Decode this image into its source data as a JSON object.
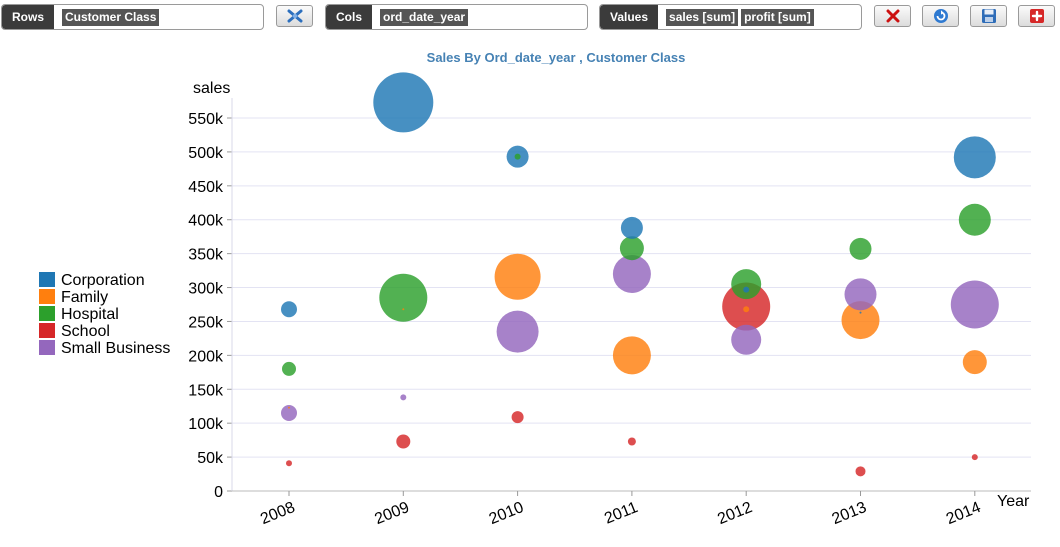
{
  "toolbar": {
    "rows_label": "Rows",
    "rows_chip": "Customer Class",
    "cols_label": "Cols",
    "cols_chip": "ord_date_year",
    "values_label": "Values",
    "values_chips": [
      "sales [sum]",
      "profit [sum]"
    ],
    "icons": [
      "swap-axes-icon",
      "clear-icon",
      "refresh-icon",
      "save-icon",
      "add-chart-icon"
    ]
  },
  "chart_data": {
    "type": "scatter",
    "title": "Sales By Ord_date_year , Customer Class",
    "xlabel": "Year",
    "ylabel": "sales",
    "categories": [
      "2008",
      "2009",
      "2010",
      "2011",
      "2012",
      "2013",
      "2014"
    ],
    "ylim": [
      0,
      575000
    ],
    "yticks": [
      0,
      50000,
      100000,
      150000,
      200000,
      250000,
      300000,
      350000,
      400000,
      450000,
      500000,
      550000
    ],
    "ytick_labels": [
      "0",
      "50k",
      "100k",
      "150k",
      "200k",
      "250k",
      "300k",
      "350k",
      "400k",
      "450k",
      "500k",
      "550k"
    ],
    "grid": true,
    "legend": "left",
    "bubble_size": "profit [sum]",
    "series": [
      {
        "name": "Corporation",
        "color": "#1f77b4",
        "values": [
          268000,
          573000,
          493000,
          388000,
          297000,
          263000,
          492000
        ],
        "size": [
          8,
          30,
          11,
          11,
          3,
          1,
          21
        ]
      },
      {
        "name": "Family",
        "color": "#ff7f0e",
        "values": [
          123000,
          268000,
          316000,
          200000,
          268000,
          252000,
          190000
        ],
        "size": [
          1,
          1,
          23,
          19,
          3,
          19,
          12
        ]
      },
      {
        "name": "Hospital",
        "color": "#2ca02c",
        "values": [
          180000,
          285000,
          493000,
          358000,
          305000,
          357000,
          400000
        ],
        "size": [
          7,
          24,
          3,
          12,
          15,
          11,
          16
        ]
      },
      {
        "name": "School",
        "color": "#d62728",
        "values": [
          41000,
          73000,
          109000,
          73000,
          272000,
          29000,
          50000
        ],
        "size": [
          3,
          7,
          6,
          4,
          24,
          5,
          3
        ]
      },
      {
        "name": "Small Business",
        "color": "#9467bd",
        "values": [
          115000,
          138000,
          235000,
          320000,
          223000,
          290000,
          275000
        ],
        "size": [
          8,
          3,
          21,
          19,
          15,
          16,
          24
        ]
      }
    ]
  }
}
